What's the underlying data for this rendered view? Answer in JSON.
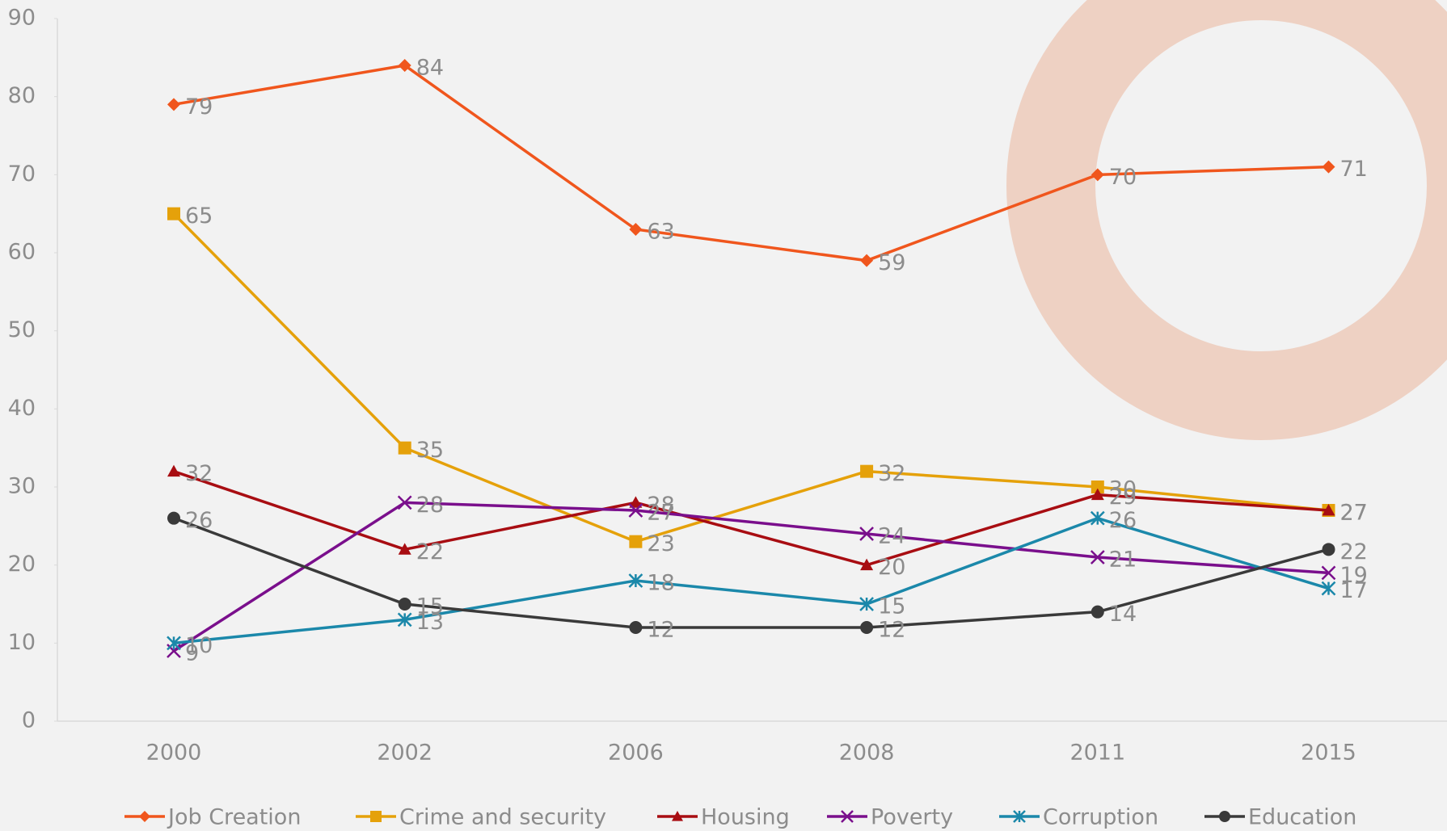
{
  "chart_data": {
    "type": "line",
    "categories": [
      "2000",
      "2002",
      "2006",
      "2008",
      "2011",
      "2015"
    ],
    "ylim": [
      0,
      90
    ],
    "yticks": [
      0,
      10,
      20,
      30,
      40,
      50,
      60,
      70,
      80,
      90
    ],
    "legend": "bottom",
    "series": [
      {
        "name": "Job Creation",
        "color": "#f0561d",
        "marker": "diamond",
        "values": [
          79,
          84,
          63,
          59,
          70,
          71
        ]
      },
      {
        "name": "Crime and security",
        "color": "#e5a10a",
        "marker": "square",
        "values": [
          65,
          35,
          23,
          32,
          30,
          27
        ]
      },
      {
        "name": "Housing",
        "color": "#a80d12",
        "marker": "triangle",
        "values": [
          32,
          22,
          28,
          20,
          29,
          27
        ]
      },
      {
        "name": "Poverty",
        "color": "#7a0f8c",
        "marker": "x",
        "values": [
          9,
          28,
          27,
          24,
          21,
          19
        ]
      },
      {
        "name": "Corruption",
        "color": "#1b88aa",
        "marker": "asterisk",
        "values": [
          10,
          13,
          18,
          15,
          26,
          17
        ]
      },
      {
        "name": "Education",
        "color": "#3a3a3a",
        "marker": "circle",
        "values": [
          26,
          15,
          12,
          12,
          14,
          22
        ]
      }
    ]
  }
}
